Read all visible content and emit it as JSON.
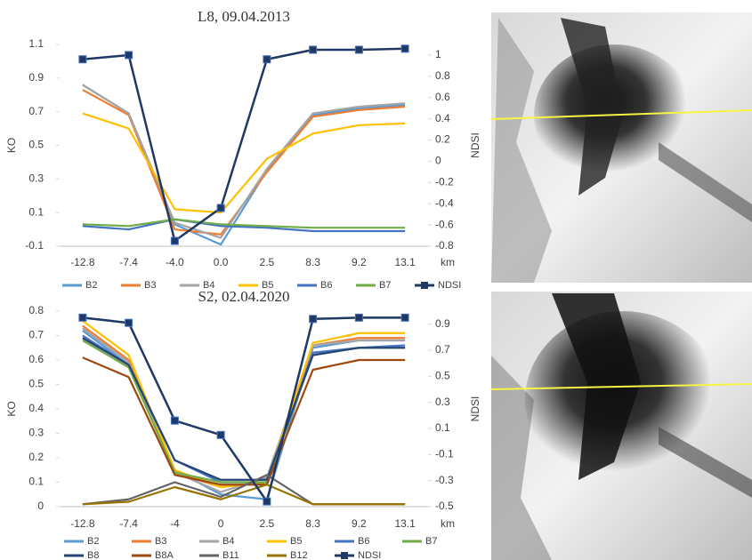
{
  "chart_data": [
    {
      "type": "line",
      "title": "L8, 09.04.2013",
      "xlabel": "km",
      "ylabel": "KO",
      "y2label": "NDSI",
      "categories": [
        "-12.8",
        "-7.4",
        "-4.0",
        "0.0",
        "2.5",
        "8.3",
        "9.2",
        "13.1"
      ],
      "ylim": [
        -0.1,
        1.1
      ],
      "yticks": [
        -0.1,
        0.1,
        0.3,
        0.5,
        0.7,
        0.9,
        1.1
      ],
      "y2lim": [
        -0.8,
        1.1
      ],
      "y2ticks": [
        -0.8,
        -0.6,
        -0.4,
        -0.2,
        0,
        0.2,
        0.4,
        0.6,
        0.8,
        1
      ],
      "grid": false,
      "series": [
        {
          "name": "B2",
          "color": "#5b9bd5",
          "values": [
            0.86,
            0.69,
            0.03,
            -0.09,
            0.35,
            0.68,
            0.72,
            0.74
          ]
        },
        {
          "name": "B3",
          "color": "#ed7d31",
          "values": [
            0.83,
            0.68,
            0.0,
            -0.03,
            0.34,
            0.67,
            0.71,
            0.73
          ]
        },
        {
          "name": "B4",
          "color": "#a5a5a5",
          "values": [
            0.86,
            0.69,
            0.04,
            -0.05,
            0.36,
            0.69,
            0.73,
            0.75
          ]
        },
        {
          "name": "B5",
          "color": "#ffc000",
          "values": [
            0.69,
            0.6,
            0.12,
            0.1,
            0.42,
            0.57,
            0.62,
            0.63
          ]
        },
        {
          "name": "B6",
          "color": "#4472c4",
          "values": [
            0.02,
            0.0,
            0.06,
            0.02,
            0.01,
            -0.01,
            -0.01,
            -0.01
          ]
        },
        {
          "name": "B7",
          "color": "#70ad47",
          "values": [
            0.03,
            0.02,
            0.06,
            0.03,
            0.02,
            0.01,
            0.01,
            0.01
          ]
        },
        {
          "name": "NDSI",
          "color": "#1f3864",
          "axis": "y2",
          "marker": "square",
          "values": [
            0.96,
            1.0,
            -0.75,
            -0.44,
            0.96,
            1.05,
            1.05,
            1.06
          ]
        }
      ]
    },
    {
      "type": "line",
      "title": "S2, 02.04.2020",
      "xlabel": "km",
      "ylabel": "KO",
      "y2label": "NDSI",
      "categories": [
        "-12.8",
        "-7.4",
        "-4",
        "0",
        "2.5",
        "8.3",
        "9.2",
        "13.1"
      ],
      "ylim": [
        0,
        0.8
      ],
      "yticks": [
        0,
        0.1,
        0.2,
        0.3,
        0.4,
        0.5,
        0.6,
        0.7,
        0.8
      ],
      "y2lim": [
        -0.5,
        1.0
      ],
      "y2ticks": [
        -0.5,
        -0.3,
        -0.1,
        0.1,
        0.3,
        0.5,
        0.7,
        0.9
      ],
      "grid": false,
      "series": [
        {
          "name": "B2",
          "color": "#5b9bd5",
          "values": [
            0.72,
            0.58,
            0.15,
            0.05,
            0.03,
            0.65,
            0.68,
            0.68
          ]
        },
        {
          "name": "B3",
          "color": "#ed7d31",
          "values": [
            0.74,
            0.6,
            0.14,
            0.08,
            0.1,
            0.66,
            0.69,
            0.69
          ]
        },
        {
          "name": "B4",
          "color": "#a5a5a5",
          "values": [
            0.73,
            0.59,
            0.14,
            0.06,
            0.12,
            0.66,
            0.68,
            0.68
          ]
        },
        {
          "name": "B5",
          "color": "#ffc000",
          "values": [
            0.76,
            0.62,
            0.15,
            0.08,
            0.1,
            0.67,
            0.71,
            0.71
          ]
        },
        {
          "name": "B6",
          "color": "#4472c4",
          "values": [
            0.7,
            0.58,
            0.19,
            0.1,
            0.1,
            0.63,
            0.65,
            0.66
          ]
        },
        {
          "name": "B7",
          "color": "#70ad47",
          "values": [
            0.68,
            0.57,
            0.14,
            0.1,
            0.1,
            0.62,
            0.65,
            0.65
          ]
        },
        {
          "name": "B8",
          "color": "#264478",
          "values": [
            0.69,
            0.58,
            0.19,
            0.11,
            0.11,
            0.62,
            0.65,
            0.65
          ]
        },
        {
          "name": "B8A",
          "color": "#9e480e",
          "values": [
            0.61,
            0.53,
            0.13,
            0.09,
            0.09,
            0.56,
            0.6,
            0.6
          ]
        },
        {
          "name": "B11",
          "color": "#636363",
          "values": [
            0.01,
            0.03,
            0.1,
            0.04,
            0.13,
            0.01,
            0.01,
            0.01
          ]
        },
        {
          "name": "B12",
          "color": "#997300",
          "values": [
            0.01,
            0.02,
            0.08,
            0.03,
            0.09,
            0.01,
            0.01,
            0.01
          ]
        },
        {
          "name": "NDSI",
          "color": "#1f3864",
          "axis": "y2",
          "marker": "square",
          "values": [
            0.95,
            0.91,
            0.16,
            0.05,
            -0.46,
            0.94,
            0.95,
            0.95
          ]
        }
      ]
    }
  ]
}
